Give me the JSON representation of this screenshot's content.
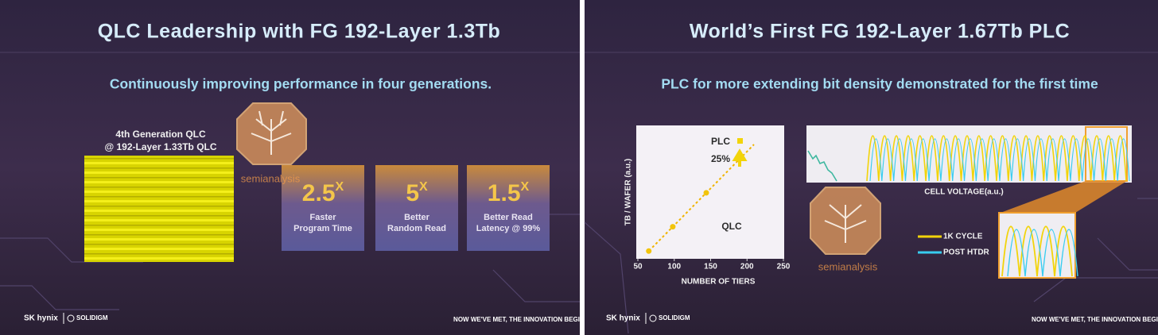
{
  "left_slide": {
    "title": "QLC Leadership with FG 192-Layer 1.3Tb",
    "subtitle": "Continuously improving performance in four generations.",
    "die_caption": [
      "4th Generation QLC",
      "@ 192-Layer 1.33Tb QLC"
    ],
    "metrics": [
      {
        "value": "2.5",
        "unit": "X",
        "lines": [
          "Faster",
          "Program Time"
        ]
      },
      {
        "value": "5",
        "unit": "X",
        "lines": [
          "Better",
          "Random Read"
        ]
      },
      {
        "value": "1.5",
        "unit": "X",
        "lines": [
          "Better Read",
          "Latency @ 99%"
        ]
      }
    ]
  },
  "right_slide": {
    "title": "World’s First FG 192-Layer 1.67Tb PLC",
    "subtitle": "PLC for more extending bit density demonstrated for the first time",
    "density_chart": {
      "y_label": "TB / WAFER (a.u.)",
      "x_label": "NUMBER OF TIERS",
      "xlim": [
        50,
        250
      ],
      "xticks": [
        50,
        100,
        150,
        200,
        250
      ],
      "points": [
        65,
        98,
        144,
        192
      ],
      "plc_label": "PLC",
      "gain_label": "25%",
      "qlc_label": "QLC"
    },
    "voltage_chart": {
      "x_label": "CELL VOLTAGE(a.u.)",
      "legend": [
        {
          "name": "1K CYCLE",
          "color": "#f2d40a"
        },
        {
          "name": "POST HTDR",
          "color": "#38cdf0"
        }
      ]
    }
  },
  "watermark": "semianalysis",
  "footer": {
    "brand": "SK hynix",
    "partner": "SOLIDIGM",
    "tagline": "NOW WE'VE MET, THE INNOVATION BEGI"
  }
}
